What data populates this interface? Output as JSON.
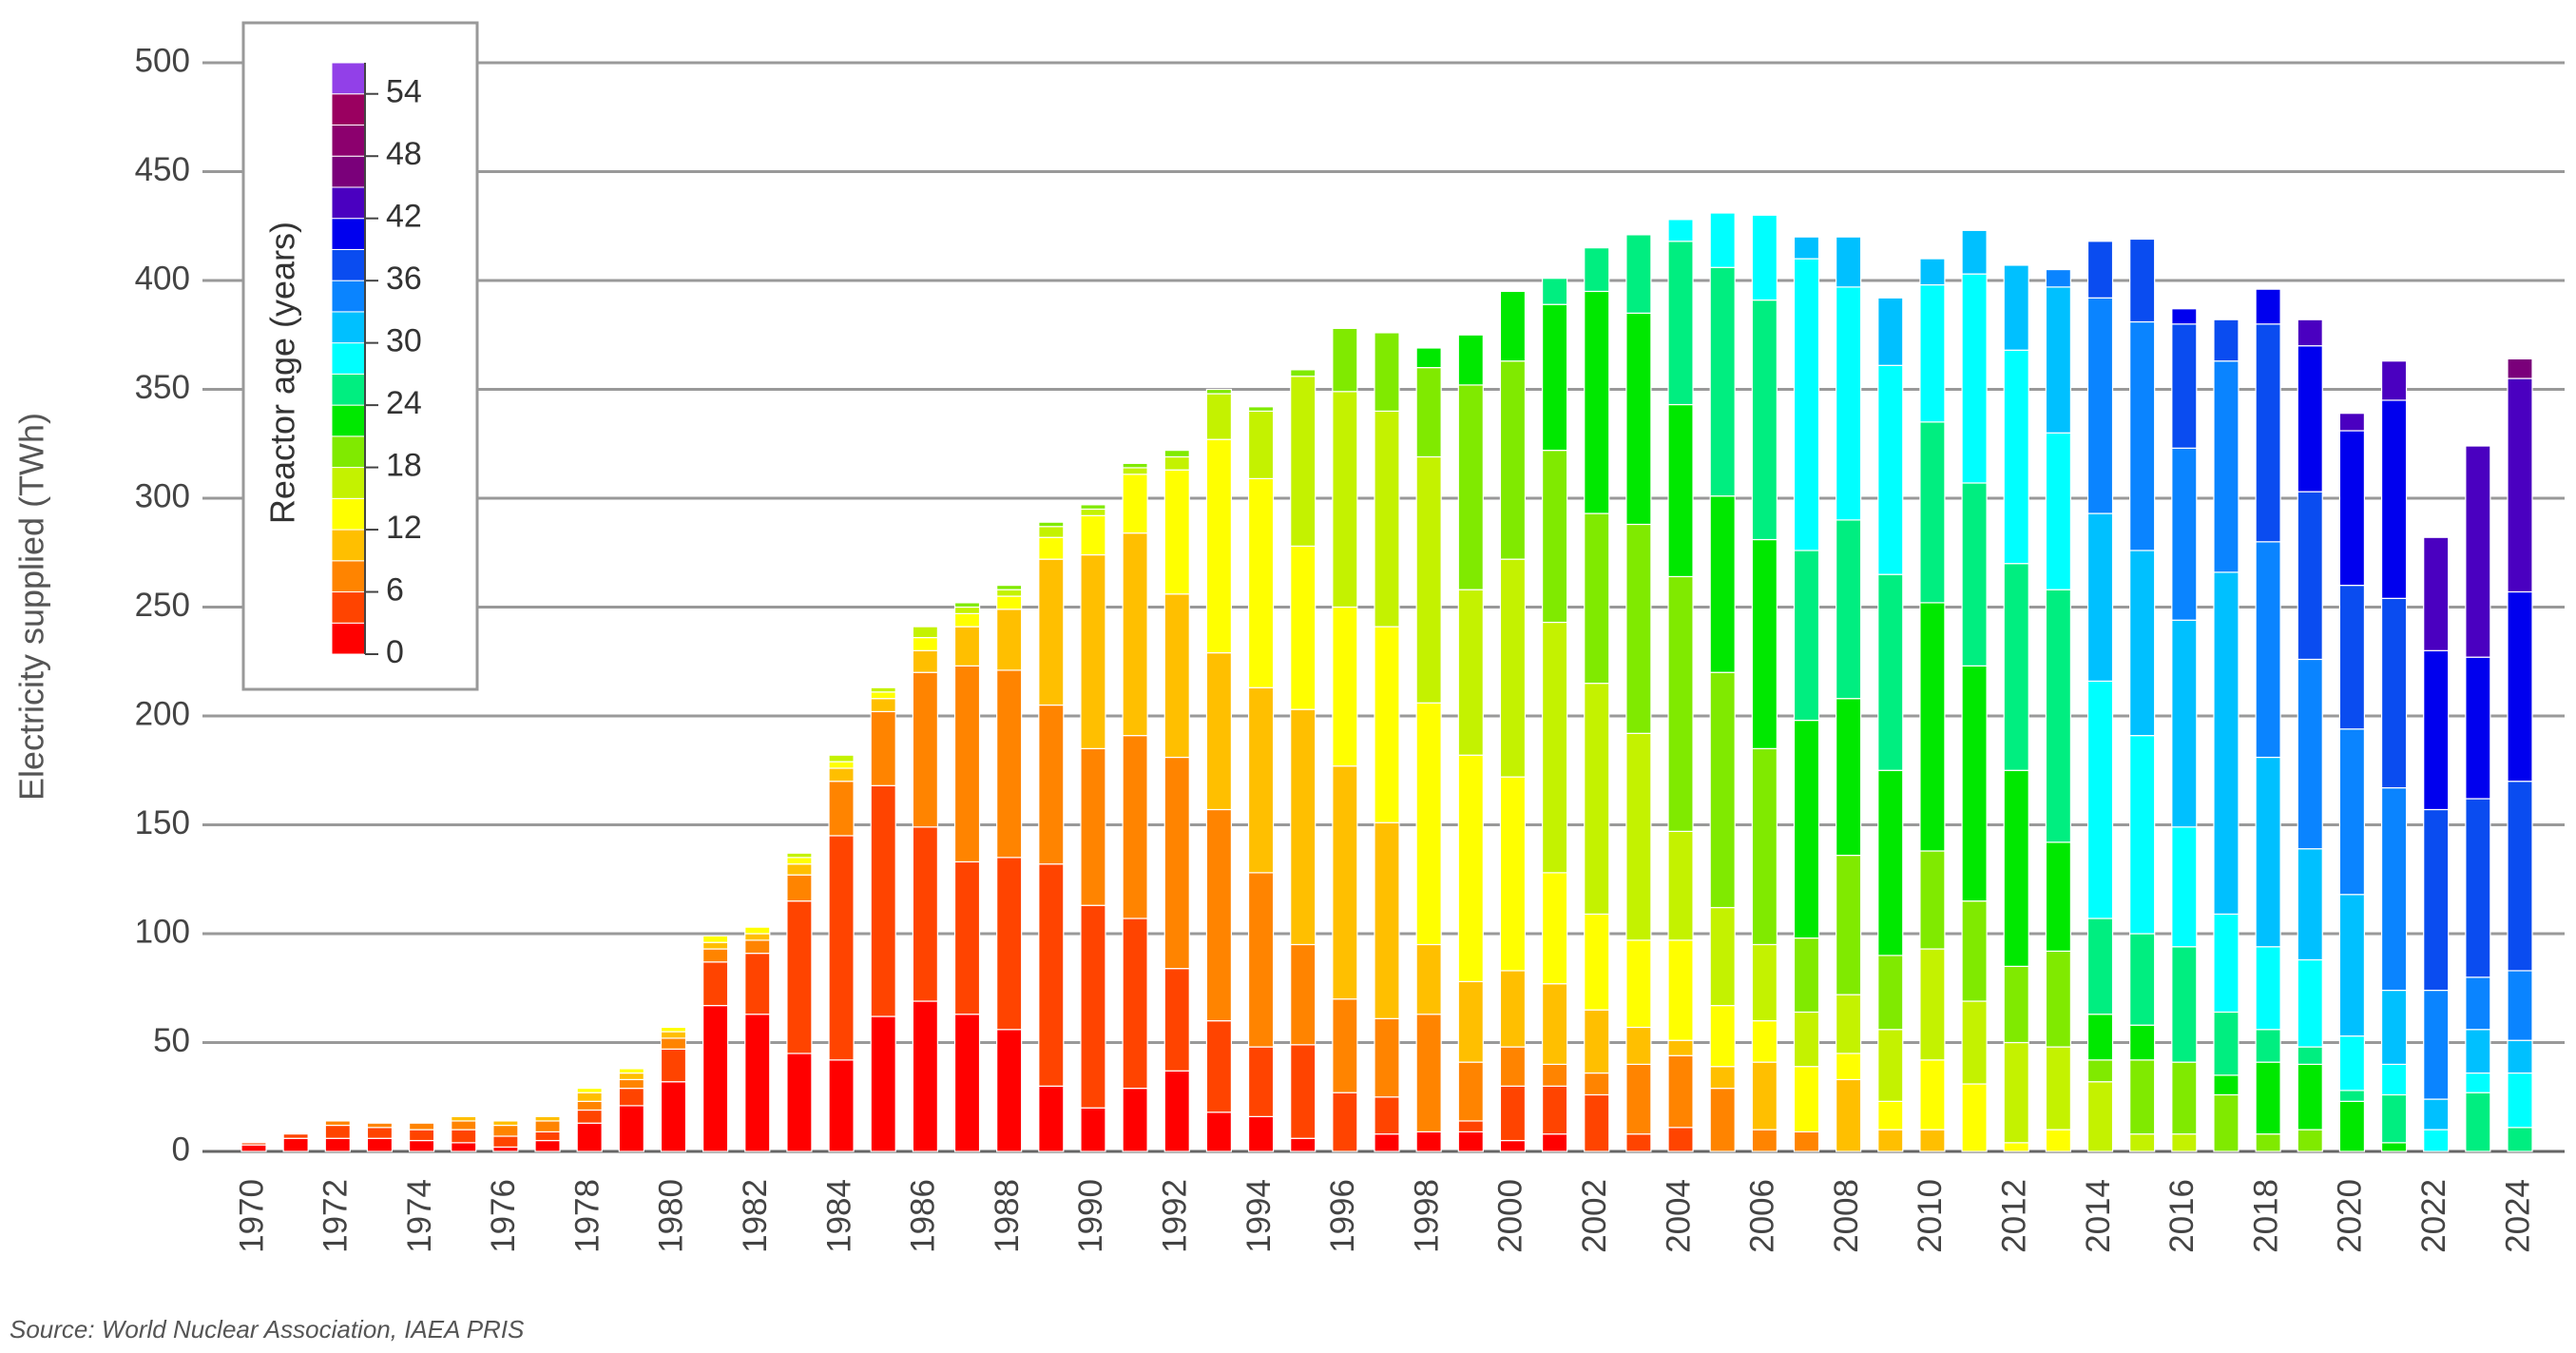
{
  "chart_data": {
    "type": "stacked-bar",
    "y_label": "Electricity supplied (TWh)",
    "source": "Source: World Nuclear Association, IAEA PRIS",
    "categories": [
      "1970",
      null,
      "1972",
      null,
      "1974",
      null,
      "1976",
      null,
      "1978",
      null,
      "1980",
      null,
      "1982",
      null,
      "1984",
      null,
      "1986",
      null,
      "1988",
      null,
      "1990",
      null,
      "1992",
      null,
      "1994",
      null,
      "1996",
      null,
      "1998",
      null,
      "2000",
      null,
      "2002",
      null,
      "2004",
      null,
      "2006",
      null,
      "2008",
      null,
      "2010",
      null,
      "2012",
      null,
      "2014",
      null,
      "2016",
      null,
      "2018",
      null,
      "2020",
      null,
      "2022",
      null,
      "2024"
    ],
    "values": [
      [
        3,
        1
      ],
      [
        6,
        2
      ],
      [
        6,
        6,
        2
      ],
      [
        6,
        5,
        2
      ],
      [
        5,
        5,
        3
      ],
      [
        4,
        6,
        4,
        2
      ],
      [
        2,
        5,
        5,
        2
      ],
      [
        5,
        4,
        5,
        2
      ],
      [
        13,
        6,
        4,
        4,
        2
      ],
      [
        21,
        8,
        4,
        3,
        2
      ],
      [
        32,
        15,
        5,
        3,
        2
      ],
      [
        67,
        20,
        6,
        3,
        3
      ],
      [
        63,
        28,
        6,
        3,
        3
      ],
      [
        45,
        70,
        12,
        5,
        3,
        2
      ],
      [
        42,
        103,
        25,
        6,
        3,
        3
      ],
      [
        62,
        106,
        34,
        6,
        3,
        2
      ],
      [
        69,
        80,
        71,
        10,
        6,
        5
      ],
      [
        63,
        70,
        90,
        18,
        6,
        3,
        2
      ],
      [
        56,
        79,
        86,
        28,
        6,
        3,
        2
      ],
      [
        30,
        102,
        73,
        67,
        10,
        5,
        2
      ],
      [
        20,
        93,
        72,
        89,
        18,
        3,
        2
      ],
      [
        29,
        78,
        84,
        93,
        27,
        3,
        2
      ],
      [
        37,
        47,
        97,
        75,
        57,
        6,
        3
      ],
      [
        18,
        42,
        97,
        72,
        98,
        21,
        2
      ],
      [
        16,
        32,
        80,
        85,
        96,
        31,
        2
      ],
      [
        6,
        43,
        46,
        108,
        75,
        78,
        3
      ],
      [
        0,
        27,
        43,
        107,
        73,
        99,
        29
      ],
      [
        8,
        17,
        36,
        90,
        90,
        99,
        36
      ],
      [
        9,
        0,
        54,
        32,
        111,
        113,
        41,
        9
      ],
      [
        9,
        5,
        27,
        37,
        104,
        76,
        94,
        23
      ],
      [
        5,
        25,
        18,
        35,
        89,
        100,
        91,
        32
      ],
      [
        8,
        22,
        10,
        37,
        51,
        115,
        79,
        67,
        12
      ],
      [
        0,
        26,
        10,
        29,
        44,
        106,
        78,
        102,
        20
      ],
      [
        0,
        8,
        32,
        17,
        40,
        95,
        96,
        97,
        36
      ],
      [
        0,
        11,
        33,
        7,
        46,
        50,
        117,
        79,
        75,
        10
      ],
      [
        0,
        0,
        29,
        10,
        28,
        45,
        108,
        81,
        105,
        25
      ],
      [
        0,
        0,
        10,
        31,
        19,
        35,
        90,
        96,
        110,
        39
      ],
      [
        0,
        0,
        9,
        0,
        30,
        25,
        34,
        100,
        78,
        134,
        10
      ],
      [
        0,
        0,
        0,
        33,
        12,
        27,
        64,
        72,
        82,
        107,
        23
      ],
      [
        0,
        0,
        0,
        10,
        13,
        33,
        34,
        85,
        90,
        96,
        31
      ],
      [
        0,
        0,
        0,
        10,
        32,
        51,
        45,
        114,
        83,
        63,
        12
      ],
      [
        0,
        0,
        0,
        0,
        31,
        38,
        46,
        108,
        84,
        96,
        20
      ],
      [
        0,
        0,
        0,
        0,
        4,
        46,
        35,
        90,
        95,
        98,
        39
      ],
      [
        0,
        0,
        0,
        0,
        10,
        38,
        44,
        50,
        116,
        72,
        67,
        8
      ],
      [
        0,
        0,
        0,
        0,
        0,
        32,
        10,
        21,
        44,
        109,
        77,
        99,
        26
      ],
      [
        0,
        0,
        0,
        0,
        0,
        8,
        34,
        16,
        42,
        91,
        85,
        105,
        38
      ],
      [
        0,
        0,
        0,
        0,
        0,
        8,
        33,
        0,
        53,
        55,
        95,
        79,
        57,
        7
      ],
      [
        0,
        0,
        0,
        0,
        0,
        0,
        26,
        9,
        29,
        45,
        157,
        97,
        19
      ],
      [
        0,
        0,
        0,
        0,
        0,
        0,
        8,
        33,
        15,
        38,
        87,
        99,
        100,
        16
      ],
      [
        0,
        0,
        0,
        0,
        0,
        0,
        10,
        30,
        8,
        40,
        51,
        87,
        77,
        67,
        12
      ],
      [
        0,
        0,
        0,
        0,
        0,
        0,
        0,
        23,
        5,
        25,
        65,
        76,
        66,
        71,
        8
      ],
      [
        0,
        0,
        0,
        0,
        0,
        0,
        0,
        4,
        22,
        14,
        34,
        93,
        87,
        91,
        18
      ],
      [
        0,
        0,
        0,
        0,
        0,
        0,
        0,
        0,
        0,
        10,
        14,
        50,
        83,
        73,
        52
      ],
      [
        0,
        0,
        0,
        0,
        0,
        0,
        0,
        0,
        27,
        9,
        20,
        24,
        82,
        65,
        97
      ],
      [
        0,
        0,
        0,
        0,
        0,
        0,
        0,
        0,
        11,
        25,
        15,
        32,
        87,
        87,
        98,
        9
      ]
    ],
    "ylim": [
      0,
      500
    ],
    "yticks": [
      0,
      50,
      100,
      150,
      200,
      250,
      300,
      350,
      400,
      450,
      500
    ],
    "grid": true,
    "colorbar": {
      "label": "Reactor age (years)",
      "lim": [
        0,
        57
      ],
      "ticks": [
        0,
        6,
        12,
        18,
        24,
        30,
        36,
        42,
        48,
        54
      ],
      "colors": [
        "#ff0000",
        "#ff4400",
        "#ff8400",
        "#ffbf00",
        "#ffff00",
        "#c4f200",
        "#80ea00",
        "#00e800",
        "#00ee80",
        "#00ffff",
        "#00c0ff",
        "#0a84ff",
        "#0a4cf0",
        "#0000ee",
        "#4a00c0",
        "#7a007a",
        "#8c006e",
        "#9a0060",
        "#9240e8"
      ]
    }
  }
}
